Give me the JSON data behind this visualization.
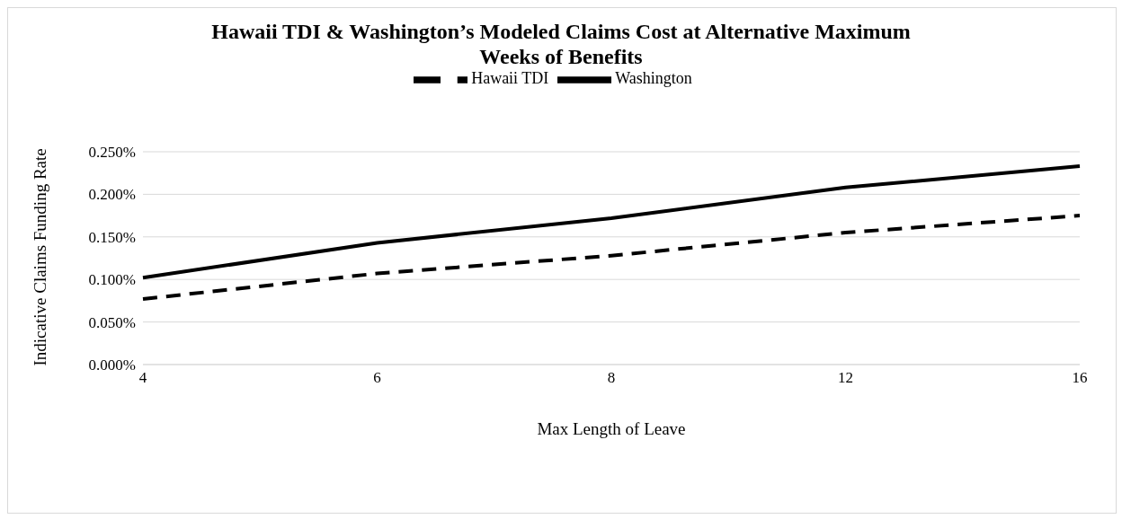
{
  "chart_data": {
    "type": "line",
    "title": "Hawaii TDI & Washington’s Modeled Claims Cost at Alternative Maximum Weeks of Benefits",
    "xlabel": "Max Length of Leave",
    "ylabel": "Indicative Claims Funding Rate",
    "categories": [
      "4",
      "6",
      "8",
      "12",
      "16"
    ],
    "series": [
      {
        "name": "Washington",
        "color": "#000000",
        "line_style": "solid",
        "values": [
          0.102,
          0.143,
          0.172,
          0.208,
          0.233
        ]
      },
      {
        "name": "Hawaii TDI",
        "color": "#000000",
        "line_style": "dashed",
        "values": [
          0.077,
          0.107,
          0.128,
          0.155,
          0.175
        ]
      }
    ],
    "ylim": [
      0,
      0.25
    ],
    "yticks": [
      {
        "value": 0,
        "label": "0.000%"
      },
      {
        "value": 0.05,
        "label": "0.050%"
      },
      {
        "value": 0.1,
        "label": "0.100%"
      },
      {
        "value": 0.15,
        "label": "0.150%"
      },
      {
        "value": 0.2,
        "label": "0.200%"
      },
      {
        "value": 0.25,
        "label": "0.250%"
      }
    ],
    "grid": "y",
    "legend": "top",
    "marker": "none"
  }
}
